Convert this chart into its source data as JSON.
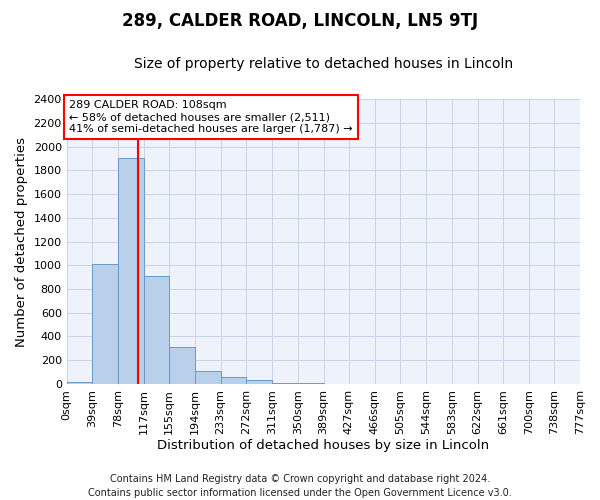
{
  "title": "289, CALDER ROAD, LINCOLN, LN5 9TJ",
  "subtitle": "Size of property relative to detached houses in Lincoln",
  "xlabel": "Distribution of detached houses by size in Lincoln",
  "ylabel": "Number of detached properties",
  "footer_line1": "Contains HM Land Registry data © Crown copyright and database right 2024.",
  "footer_line2": "Contains public sector information licensed under the Open Government Licence v3.0.",
  "bin_edges": [
    0,
    39,
    78,
    117,
    155,
    194,
    233,
    272,
    311,
    350,
    389,
    427,
    466,
    505,
    544,
    583,
    622,
    661,
    700,
    738,
    777
  ],
  "bin_labels": [
    "0sqm",
    "39sqm",
    "78sqm",
    "117sqm",
    "155sqm",
    "194sqm",
    "233sqm",
    "272sqm",
    "311sqm",
    "350sqm",
    "389sqm",
    "427sqm",
    "466sqm",
    "505sqm",
    "544sqm",
    "583sqm",
    "622sqm",
    "661sqm",
    "700sqm",
    "738sqm",
    "777sqm"
  ],
  "bar_heights": [
    20,
    1010,
    1900,
    910,
    310,
    110,
    55,
    30,
    12,
    5,
    3,
    2,
    2,
    1,
    1,
    1,
    0,
    1,
    0,
    0
  ],
  "bar_color": "#b8d0ea",
  "bar_edgecolor": "#6699cc",
  "property_size": 108,
  "vline_color": "red",
  "ylim": [
    0,
    2400
  ],
  "yticks": [
    0,
    200,
    400,
    600,
    800,
    1000,
    1200,
    1400,
    1600,
    1800,
    2000,
    2200,
    2400
  ],
  "annotation_line1": "289 CALDER ROAD: 108sqm",
  "annotation_line2": "← 58% of detached houses are smaller (2,511)",
  "annotation_line3": "41% of semi-detached houses are larger (1,787) →",
  "annotation_box_color": "red",
  "background_color": "#eef2fb",
  "grid_color": "#c8d4ec",
  "title_fontsize": 12,
  "subtitle_fontsize": 10,
  "axis_label_fontsize": 9.5,
  "tick_fontsize": 8,
  "footer_fontsize": 7
}
